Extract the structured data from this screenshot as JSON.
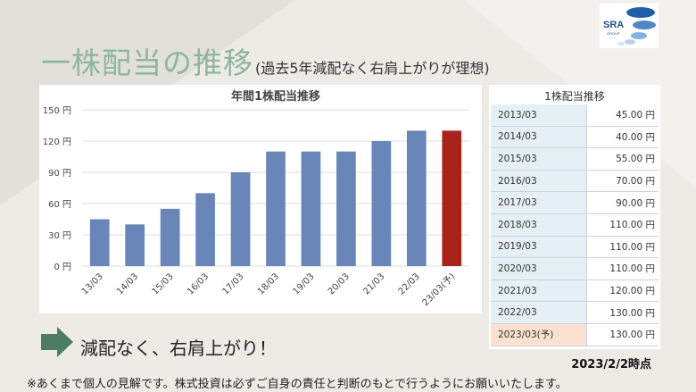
{
  "slide": {
    "title": "一株配当の推移",
    "subtitle": "(過去5年減配なく右肩上がりが理想)",
    "logo_text": "SRA",
    "logo_subtext": "GROUP",
    "arrow_text": "減配なく、右肩上がり！",
    "date_note": "2023/2/2時点",
    "footnote": "※あくまで個人の見解です。株式投資は必ずご自身の責任と判断のもとで行うようにお願いいたします。"
  },
  "table": {
    "title": "1株配当推移",
    "rows": [
      {
        "year": "2013/03",
        "value": "45.00 円"
      },
      {
        "year": "2014/03",
        "value": "40.00 円"
      },
      {
        "year": "2015/03",
        "value": "55.00 円"
      },
      {
        "year": "2016/03",
        "value": "70.00 円"
      },
      {
        "year": "2017/03",
        "value": "90.00 円"
      },
      {
        "year": "2018/03",
        "value": "110.00 円"
      },
      {
        "year": "2019/03",
        "value": "110.00 円"
      },
      {
        "year": "2020/03",
        "value": "110.00 円"
      },
      {
        "year": "2021/03",
        "value": "120.00 円"
      },
      {
        "year": "2022/03",
        "value": "130.00 円"
      },
      {
        "year": "2023/03(予)",
        "value": "130.00 円"
      }
    ]
  },
  "chart_data": {
    "type": "bar",
    "title": "年間1株配当推移",
    "categories": [
      "13/03",
      "14/03",
      "15/03",
      "16/03",
      "17/03",
      "18/03",
      "19/03",
      "20/03",
      "21/03",
      "22/03",
      "23/03(予)"
    ],
    "values": [
      45,
      40,
      55,
      70,
      90,
      110,
      110,
      110,
      120,
      130,
      130
    ],
    "yticks": [
      "0 円",
      "30 円",
      "60 円",
      "90 円",
      "120 円",
      "150 円"
    ],
    "ylim": [
      0,
      150
    ],
    "grid": true,
    "colors": {
      "actual": "#6a85b8",
      "forecast": "#a8231c"
    }
  },
  "colors": {
    "title": "#8fb59f",
    "arrow": "#4e7b64",
    "logo": "#1f5fa8"
  }
}
